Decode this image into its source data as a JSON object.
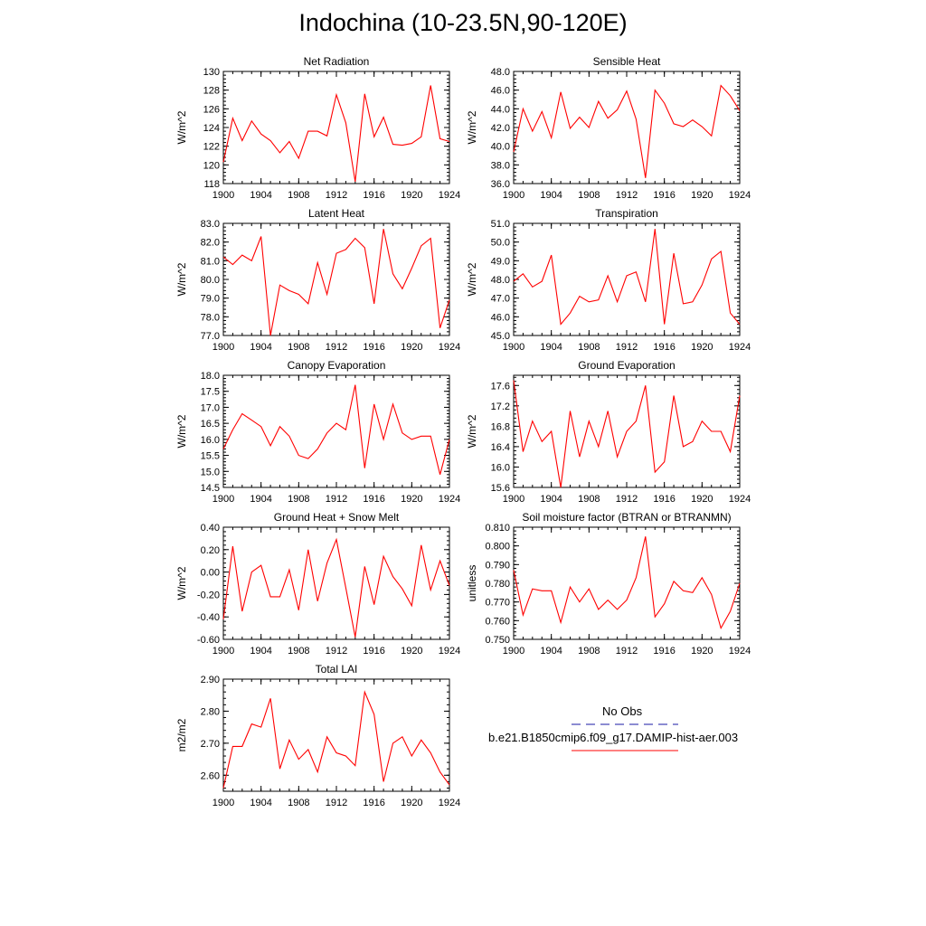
{
  "page_title": "Indochina (10-23.5N,90-120E)",
  "legend": {
    "entries": [
      {
        "label": "No Obs",
        "color": "#1a1aa6",
        "dash": true
      },
      {
        "label": "b.e21.B1850cmip6.f09_g17.DAMIP-hist-aer.003",
        "color": "#ff0000",
        "dash": false
      }
    ]
  },
  "chart_data": [
    {
      "type": "line",
      "title": "Net Radiation",
      "ylabel": "W/m^2",
      "xlim": [
        1900,
        1924
      ],
      "ylim": [
        118,
        130
      ],
      "xticks": [
        1900,
        1904,
        1908,
        1912,
        1916,
        1920,
        1924
      ],
      "xtick_labels": [
        "1900",
        "1904",
        "1908",
        "1912",
        "1916",
        "1920",
        "1924"
      ],
      "yticks": [
        118,
        120,
        122,
        124,
        126,
        128,
        130
      ],
      "ytick_labels": [
        "118",
        "120",
        "122",
        "124",
        "126",
        "128",
        "130"
      ],
      "series": [
        {
          "color": "#ff0000",
          "x": [
            1900,
            1901,
            1902,
            1903,
            1904,
            1905,
            1906,
            1907,
            1908,
            1909,
            1910,
            1911,
            1912,
            1913,
            1914,
            1915,
            1916,
            1917,
            1918,
            1919,
            1920,
            1921,
            1922,
            1923,
            1924
          ],
          "values": [
            120.3,
            125.0,
            122.6,
            124.7,
            123.3,
            122.6,
            121.3,
            122.5,
            120.7,
            123.6,
            123.6,
            123.1,
            127.5,
            124.5,
            118.2,
            127.6,
            123.0,
            125.1,
            122.2,
            122.1,
            122.3,
            123.0,
            128.5,
            122.8,
            122.5
          ]
        }
      ]
    },
    {
      "type": "line",
      "title": "Sensible Heat",
      "ylabel": "W/m^2",
      "xlim": [
        1900,
        1924
      ],
      "ylim": [
        36,
        48
      ],
      "xticks": [
        1900,
        1904,
        1908,
        1912,
        1916,
        1920,
        1924
      ],
      "xtick_labels": [
        "1900",
        "1904",
        "1908",
        "1912",
        "1916",
        "1920",
        "1924"
      ],
      "yticks": [
        36,
        38,
        40,
        42,
        44,
        46,
        48
      ],
      "ytick_labels": [
        "36.0",
        "38.0",
        "40.0",
        "42.0",
        "44.0",
        "46.0",
        "48.0"
      ],
      "series": [
        {
          "color": "#ff0000",
          "x": [
            1900,
            1901,
            1902,
            1903,
            1904,
            1905,
            1906,
            1907,
            1908,
            1909,
            1910,
            1911,
            1912,
            1913,
            1914,
            1915,
            1916,
            1917,
            1918,
            1919,
            1920,
            1921,
            1922,
            1923,
            1924
          ],
          "values": [
            39.4,
            44.0,
            41.6,
            43.7,
            40.9,
            45.8,
            41.9,
            43.1,
            42.0,
            44.8,
            43.0,
            43.9,
            45.9,
            42.9,
            36.6,
            46.0,
            44.6,
            42.4,
            42.1,
            42.8,
            42.1,
            41.1,
            46.5,
            45.4,
            43.8
          ]
        }
      ]
    },
    {
      "type": "line",
      "title": "Latent Heat",
      "ylabel": "W/m^2",
      "xlim": [
        1900,
        1924
      ],
      "ylim": [
        77,
        83
      ],
      "xticks": [
        1900,
        1904,
        1908,
        1912,
        1916,
        1920,
        1924
      ],
      "xtick_labels": [
        "1900",
        "1904",
        "1908",
        "1912",
        "1916",
        "1920",
        "1924"
      ],
      "yticks": [
        77,
        78,
        79,
        80,
        81,
        82,
        83
      ],
      "ytick_labels": [
        "77.0",
        "78.0",
        "79.0",
        "80.0",
        "81.0",
        "82.0",
        "83.0"
      ],
      "series": [
        {
          "color": "#ff0000",
          "x": [
            1900,
            1901,
            1902,
            1903,
            1904,
            1905,
            1906,
            1907,
            1908,
            1909,
            1910,
            1911,
            1912,
            1913,
            1914,
            1915,
            1916,
            1917,
            1918,
            1919,
            1920,
            1921,
            1922,
            1923,
            1924
          ],
          "values": [
            81.2,
            80.8,
            81.3,
            81.0,
            82.3,
            77.0,
            79.7,
            79.4,
            79.2,
            78.7,
            80.9,
            79.2,
            81.4,
            81.6,
            82.2,
            81.7,
            78.7,
            82.7,
            80.3,
            79.5,
            80.6,
            81.8,
            82.2,
            77.4,
            78.9
          ]
        }
      ]
    },
    {
      "type": "line",
      "title": "Transpiration",
      "ylabel": "W/m^2",
      "xlim": [
        1900,
        1924
      ],
      "ylim": [
        45,
        51
      ],
      "xticks": [
        1900,
        1904,
        1908,
        1912,
        1916,
        1920,
        1924
      ],
      "xtick_labels": [
        "1900",
        "1904",
        "1908",
        "1912",
        "1916",
        "1920",
        "1924"
      ],
      "yticks": [
        45,
        46,
        47,
        48,
        49,
        50,
        51
      ],
      "ytick_labels": [
        "45.0",
        "46.0",
        "47.0",
        "48.0",
        "49.0",
        "50.0",
        "51.0"
      ],
      "series": [
        {
          "color": "#ff0000",
          "x": [
            1900,
            1901,
            1902,
            1903,
            1904,
            1905,
            1906,
            1907,
            1908,
            1909,
            1910,
            1911,
            1912,
            1913,
            1914,
            1915,
            1916,
            1917,
            1918,
            1919,
            1920,
            1921,
            1922,
            1923,
            1924
          ],
          "values": [
            47.9,
            48.3,
            47.6,
            47.9,
            49.3,
            45.6,
            46.2,
            47.1,
            46.8,
            46.9,
            48.2,
            46.8,
            48.2,
            48.4,
            46.8,
            50.7,
            45.6,
            49.4,
            46.7,
            46.8,
            47.7,
            49.1,
            49.5,
            46.2,
            45.6
          ]
        }
      ]
    },
    {
      "type": "line",
      "title": "Canopy Evaporation",
      "ylabel": "W/m^2",
      "xlim": [
        1900,
        1924
      ],
      "ylim": [
        14.5,
        18
      ],
      "xticks": [
        1900,
        1904,
        1908,
        1912,
        1916,
        1920,
        1924
      ],
      "xtick_labels": [
        "1900",
        "1904",
        "1908",
        "1912",
        "1916",
        "1920",
        "1924"
      ],
      "yticks": [
        14.5,
        15.0,
        15.5,
        16.0,
        16.5,
        17.0,
        17.5,
        18.0
      ],
      "ytick_labels": [
        "14.5",
        "15.0",
        "15.5",
        "16.0",
        "16.5",
        "17.0",
        "17.5",
        "18.0"
      ],
      "series": [
        {
          "color": "#ff0000",
          "x": [
            1900,
            1901,
            1902,
            1903,
            1904,
            1905,
            1906,
            1907,
            1908,
            1909,
            1910,
            1911,
            1912,
            1913,
            1914,
            1915,
            1916,
            1917,
            1918,
            1919,
            1920,
            1921,
            1922,
            1923,
            1924
          ],
          "values": [
            15.7,
            16.3,
            16.8,
            16.6,
            16.4,
            15.8,
            16.4,
            16.1,
            15.5,
            15.4,
            15.7,
            16.2,
            16.5,
            16.3,
            17.7,
            15.1,
            17.1,
            16.0,
            17.1,
            16.2,
            16.0,
            16.1,
            16.1,
            14.9,
            16.0
          ]
        }
      ]
    },
    {
      "type": "line",
      "title": "Ground Evaporation",
      "ylabel": "W/m^2",
      "xlim": [
        1900,
        1924
      ],
      "ylim": [
        15.6,
        17.8
      ],
      "xticks": [
        1900,
        1904,
        1908,
        1912,
        1916,
        1920,
        1924
      ],
      "xtick_labels": [
        "1900",
        "1904",
        "1908",
        "1912",
        "1916",
        "1920",
        "1924"
      ],
      "yticks": [
        15.6,
        16.0,
        16.4,
        16.8,
        17.2,
        17.6
      ],
      "ytick_labels": [
        "15.6",
        "16.0",
        "16.4",
        "16.8",
        "17.2",
        "17.6"
      ],
      "series": [
        {
          "color": "#ff0000",
          "x": [
            1900,
            1901,
            1902,
            1903,
            1904,
            1905,
            1906,
            1907,
            1908,
            1909,
            1910,
            1911,
            1912,
            1913,
            1914,
            1915,
            1916,
            1917,
            1918,
            1919,
            1920,
            1921,
            1922,
            1923,
            1924
          ],
          "values": [
            17.7,
            16.3,
            16.9,
            16.5,
            16.7,
            15.6,
            17.1,
            16.2,
            16.9,
            16.4,
            17.1,
            16.2,
            16.7,
            16.9,
            17.6,
            15.9,
            16.1,
            17.4,
            16.4,
            16.5,
            16.9,
            16.7,
            16.7,
            16.3,
            17.4
          ]
        }
      ]
    },
    {
      "type": "line",
      "title": "Ground Heat + Snow Melt",
      "ylabel": "W/m^2",
      "xlim": [
        1900,
        1924
      ],
      "ylim": [
        -0.6,
        0.4
      ],
      "xticks": [
        1900,
        1904,
        1908,
        1912,
        1916,
        1920,
        1924
      ],
      "xtick_labels": [
        "1900",
        "1904",
        "1908",
        "1912",
        "1916",
        "1920",
        "1924"
      ],
      "yticks": [
        -0.6,
        -0.4,
        -0.2,
        0.0,
        0.2,
        0.4
      ],
      "ytick_labels": [
        "-0.60",
        "-0.40",
        "-0.20",
        "0.00",
        "0.20",
        "0.40"
      ],
      "series": [
        {
          "color": "#ff0000",
          "x": [
            1900,
            1901,
            1902,
            1903,
            1904,
            1905,
            1906,
            1907,
            1908,
            1909,
            1910,
            1911,
            1912,
            1913,
            1914,
            1915,
            1916,
            1917,
            1918,
            1919,
            1920,
            1921,
            1922,
            1923,
            1924
          ],
          "values": [
            -0.42,
            0.23,
            -0.35,
            0.0,
            0.06,
            -0.22,
            -0.22,
            0.02,
            -0.34,
            0.2,
            -0.26,
            0.08,
            0.29,
            -0.14,
            -0.58,
            0.05,
            -0.29,
            0.14,
            -0.04,
            -0.15,
            -0.3,
            0.24,
            -0.16,
            0.1,
            -0.12
          ]
        }
      ]
    },
    {
      "type": "line",
      "title": "Soil moisture factor (BTRAN or BTRANMN)",
      "ylabel": "unitless",
      "xlim": [
        1900,
        1924
      ],
      "ylim": [
        0.75,
        0.81
      ],
      "xticks": [
        1900,
        1904,
        1908,
        1912,
        1916,
        1920,
        1924
      ],
      "xtick_labels": [
        "1900",
        "1904",
        "1908",
        "1912",
        "1916",
        "1920",
        "1924"
      ],
      "yticks": [
        0.75,
        0.76,
        0.77,
        0.78,
        0.79,
        0.8,
        0.81
      ],
      "ytick_labels": [
        "0.750",
        "0.760",
        "0.770",
        "0.780",
        "0.790",
        "0.800",
        "0.810"
      ],
      "series": [
        {
          "color": "#ff0000",
          "x": [
            1900,
            1901,
            1902,
            1903,
            1904,
            1905,
            1906,
            1907,
            1908,
            1909,
            1910,
            1911,
            1912,
            1913,
            1914,
            1915,
            1916,
            1917,
            1918,
            1919,
            1920,
            1921,
            1922,
            1923,
            1924
          ],
          "values": [
            0.787,
            0.763,
            0.777,
            0.776,
            0.776,
            0.759,
            0.778,
            0.77,
            0.777,
            0.766,
            0.771,
            0.766,
            0.771,
            0.783,
            0.805,
            0.762,
            0.769,
            0.781,
            0.776,
            0.775,
            0.783,
            0.774,
            0.756,
            0.765,
            0.78
          ]
        }
      ]
    },
    {
      "type": "line",
      "title": "Total LAI",
      "ylabel": "m2/m2",
      "xlim": [
        1900,
        1924
      ],
      "ylim": [
        2.55,
        2.9
      ],
      "xticks": [
        1900,
        1904,
        1908,
        1912,
        1916,
        1920,
        1924
      ],
      "xtick_labels": [
        "1900",
        "1904",
        "1908",
        "1912",
        "1916",
        "1920",
        "1924"
      ],
      "yticks": [
        2.6,
        2.7,
        2.8,
        2.9
      ],
      "ytick_labels": [
        "2.60",
        "2.70",
        "2.80",
        "2.90"
      ],
      "series": [
        {
          "color": "#ff0000",
          "x": [
            1900,
            1901,
            1902,
            1903,
            1904,
            1905,
            1906,
            1907,
            1908,
            1909,
            1910,
            1911,
            1912,
            1913,
            1914,
            1915,
            1916,
            1917,
            1918,
            1919,
            1920,
            1921,
            1922,
            1923,
            1924
          ],
          "values": [
            2.56,
            2.69,
            2.69,
            2.76,
            2.75,
            2.84,
            2.62,
            2.71,
            2.65,
            2.68,
            2.61,
            2.72,
            2.67,
            2.66,
            2.63,
            2.86,
            2.79,
            2.58,
            2.7,
            2.72,
            2.66,
            2.71,
            2.67,
            2.61,
            2.57
          ]
        }
      ]
    }
  ]
}
